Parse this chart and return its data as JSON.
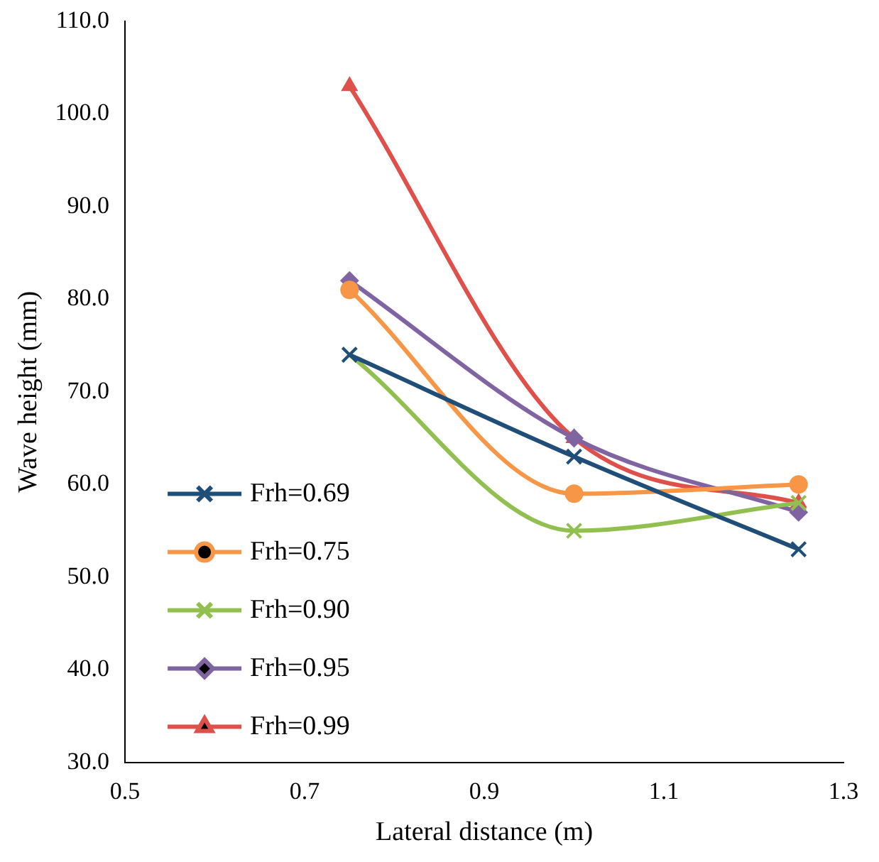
{
  "chart_data": {
    "type": "line",
    "xlabel": "Lateral distance (m)",
    "ylabel": "Wave height (mm)",
    "x": [
      0.75,
      1.0,
      1.25
    ],
    "series": [
      {
        "name": "Frh=0.69",
        "color": "#1f4e79",
        "marker": "cross",
        "values": [
          74,
          63,
          53
        ]
      },
      {
        "name": "Frh=0.75",
        "color": "#f79646",
        "marker": "circle",
        "values": [
          81,
          59,
          60
        ]
      },
      {
        "name": "Frh=0.90",
        "color": "#92c050",
        "marker": "cross",
        "values": [
          74,
          55,
          58
        ]
      },
      {
        "name": "Frh=0.95",
        "color": "#8064a2",
        "marker": "diamond",
        "values": [
          82,
          65,
          57
        ]
      },
      {
        "name": "Frh=0.99",
        "color": "#e0504a",
        "marker": "triangle",
        "values": [
          103,
          65,
          58
        ]
      }
    ],
    "xlim": [
      0.5,
      1.3
    ],
    "xticks": [
      0.5,
      0.7,
      0.9,
      1.1,
      1.3
    ],
    "ylim": [
      30,
      110
    ],
    "yticks": [
      {
        "value": 30,
        "label": "30.0"
      },
      {
        "value": 40,
        "label": "40.0"
      },
      {
        "value": 50,
        "label": "50.0"
      },
      {
        "value": 60,
        "label": "60.0"
      },
      {
        "value": 70,
        "label": "70.0"
      },
      {
        "value": 80,
        "label": "80.0"
      },
      {
        "value": 90,
        "label": "90.0"
      },
      {
        "value": 100,
        "label": "100.0"
      },
      {
        "value": 110,
        "label": "110.0"
      }
    ],
    "grid": false,
    "legend": "bottom left",
    "line_style": "solid"
  }
}
